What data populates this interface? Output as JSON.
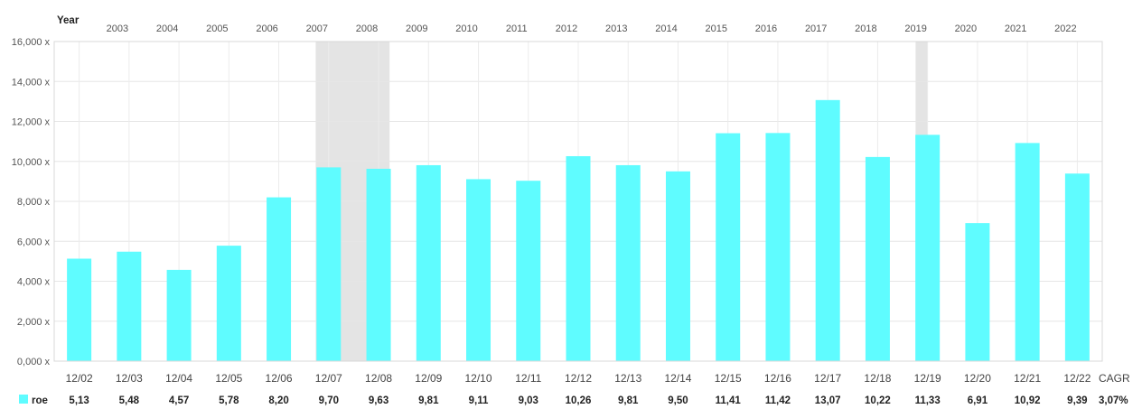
{
  "chart_data": {
    "type": "bar",
    "year_axis_label": "Year",
    "years": [
      "2003",
      "2004",
      "2005",
      "2006",
      "2007",
      "2008",
      "2009",
      "2010",
      "2011",
      "2012",
      "2013",
      "2014",
      "2015",
      "2016",
      "2017",
      "2018",
      "2019",
      "2020",
      "2021",
      "2022"
    ],
    "categories": [
      "12/02",
      "12/03",
      "12/04",
      "12/05",
      "12/06",
      "12/07",
      "12/08",
      "12/09",
      "12/10",
      "12/11",
      "12/12",
      "12/13",
      "12/14",
      "12/15",
      "12/16",
      "12/17",
      "12/18",
      "12/19",
      "12/20",
      "12/21",
      "12/22"
    ],
    "series": [
      {
        "name": "roe",
        "color": "#5ffcff",
        "values": [
          5.13,
          5.48,
          4.57,
          5.78,
          8.2,
          9.7,
          9.63,
          9.81,
          9.11,
          9.03,
          10.26,
          9.81,
          9.5,
          11.41,
          11.42,
          13.07,
          10.22,
          11.33,
          6.91,
          10.92,
          9.39
        ],
        "value_labels": [
          "5,13",
          "5,48",
          "4,57",
          "5,78",
          "8,20",
          "9,70",
          "9,63",
          "9,81",
          "9,11",
          "9,03",
          "10,26",
          "9,81",
          "9,50",
          "11,41",
          "11,42",
          "13,07",
          "10,22",
          "11,33",
          "6,91",
          "10,92",
          "9,39"
        ]
      }
    ],
    "yticks": [
      "0,000 x",
      "2,000 x",
      "4,000 x",
      "6,000 x",
      "8,000 x",
      "10,000 x",
      "12,000 x",
      "14,000 x",
      "16,000 x"
    ],
    "ylim": [
      0,
      16
    ],
    "shaded_periods": [
      {
        "from": 2007.24,
        "to": 2008.72
      },
      {
        "from": 2019.26,
        "to": 2019.5
      }
    ],
    "summary_label": "CAGR",
    "summary_value": "3,07%",
    "grid": true,
    "legend": "bottom-left"
  }
}
